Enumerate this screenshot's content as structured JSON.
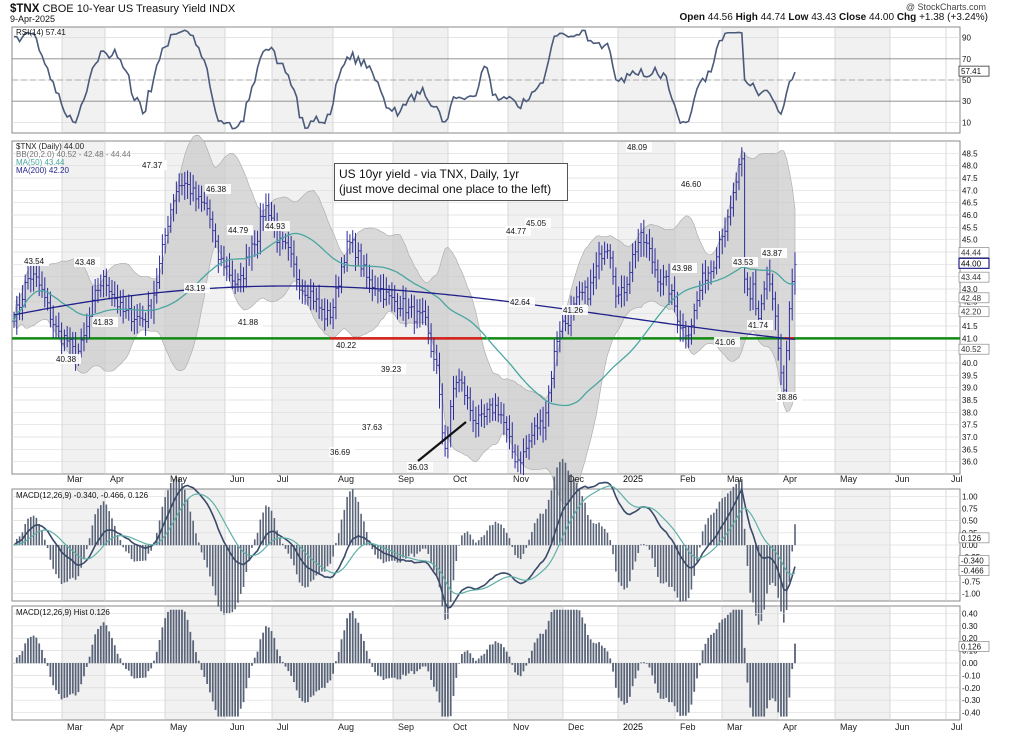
{
  "header": {
    "symbol": "$TNX",
    "name": "CBOE 10-Year US Treasury Yield",
    "exchange": "INDX",
    "date": "9-Apr-2025",
    "brand": "@ StockCharts.com",
    "quote": {
      "open_label": "Open",
      "open": "44.56",
      "high_label": "High",
      "high": "44.74",
      "low_label": "Low",
      "low": "43.43",
      "close_label": "Close",
      "close": "44.00",
      "chg_label": "Chg",
      "chg": "+1.38 (+3.24%)"
    }
  },
  "annotation": {
    "line1": "US 10yr yield - via TNX, Daily, 1yr",
    "line2": "(just move decimal one place to the left)"
  },
  "colors": {
    "price": "#2b2b9c",
    "ma50": "#4aa6a0",
    "ma200": "#1f1f8a",
    "bb": "#c9c9c9",
    "support": "#108a10",
    "breakdown": "#e02020",
    "macd": "#3a4a6a",
    "signal": "#5fb0a8",
    "hist": "#5a6478",
    "rsi": "#4a5a7a"
  },
  "rsi_panel": {
    "legend": "RSI(14) 57.41",
    "ylim": [
      0,
      100
    ],
    "ticks": [
      "90",
      "70",
      "50",
      "30",
      "10"
    ],
    "last_value": "57.41",
    "levels": [
      70,
      30
    ]
  },
  "price_panel": {
    "legend": {
      "price": "$TNX (Daily) 44.00",
      "bb": "BB(20,2.0) 40.52 - 42.48 - 44.44",
      "ma50": "MA(50) 43.44",
      "ma200": "MA(200) 42.20"
    },
    "ylim": [
      35.5,
      49.0
    ],
    "ticks": [
      "48.5",
      "48.0",
      "47.5",
      "47.0",
      "46.5",
      "46.0",
      "45.5",
      "45.0",
      "44.5",
      "44.0",
      "43.5",
      "43.0",
      "42.5",
      "42.0",
      "41.5",
      "41.0",
      "40.5",
      "40.0",
      "39.5",
      "39.0",
      "38.5",
      "38.0",
      "37.5",
      "37.0",
      "36.5",
      "36.0"
    ],
    "axis_labels": [
      "44.44",
      "44.00",
      "43.44",
      "42.48",
      "42.20",
      "40.52"
    ],
    "support_level": 41.0,
    "data_labels": [
      "43.54",
      "40.38",
      "43.48",
      "41.83",
      "47.37",
      "43.19",
      "46.38",
      "44.79",
      "41.88",
      "44.93",
      "40.22",
      "36.69",
      "39.23",
      "37.63",
      "36.03",
      "44.77",
      "42.64",
      "45.05",
      "41.26",
      "48.09",
      "43.98",
      "46.60",
      "43.53",
      "41.06",
      "43.87",
      "41.74",
      "38.86"
    ]
  },
  "macd_panel": {
    "legend": "MACD(12,26,9) -0.340, -0.466, 0.126",
    "ylim": [
      -1.15,
      1.15
    ],
    "ticks": [
      "1.00",
      "0.75",
      "0.50",
      "0.25",
      "0.00",
      "-0.25",
      "-0.50",
      "-0.75",
      "-1.00"
    ],
    "axis_labels": [
      "0.126",
      "-0.340",
      "-0.466"
    ]
  },
  "hist_panel": {
    "legend": "MACD(12,26,9) Hist 0.126",
    "ylim": [
      -0.46,
      0.46
    ],
    "ticks": [
      "0.40",
      "0.30",
      "0.20",
      "0.10",
      "0.00",
      "-0.10",
      "-0.20",
      "-0.30",
      "-0.40"
    ],
    "axis_labels": [
      "0.126"
    ]
  },
  "x_axis": {
    "months": [
      "Mar",
      "Apr",
      "May",
      "Jun",
      "Jul",
      "Aug",
      "Sep",
      "Oct",
      "Nov",
      "Dec",
      "2025",
      "Feb",
      "Mar",
      "Apr",
      "May",
      "Jun",
      "Jul"
    ]
  },
  "chart_data": {
    "type": "line",
    "title": "$TNX CBOE 10-Year US Treasury Yield INDX",
    "x": [
      "Mar",
      "Apr",
      "May",
      "Jun",
      "Jul",
      "Aug",
      "Sep",
      "Oct",
      "Nov",
      "Dec",
      "2025",
      "Feb",
      "Mar",
      "Apr"
    ],
    "series": [
      {
        "name": "$TNX (Daily)",
        "values": [
          42.4,
          42.5,
          46.4,
          44.6,
          43.4,
          41.9,
          37.1,
          39.9,
          43.5,
          42.2,
          46.0,
          44.5,
          42.3,
          44.0
        ]
      },
      {
        "name": "MA(50)",
        "values": [
          42.3,
          41.9,
          44.1,
          44.9,
          44.2,
          42.3,
          39.6,
          38.5,
          41.4,
          42.6,
          43.9,
          45.6,
          43.8,
          43.44
        ]
      },
      {
        "name": "MA(200)",
        "values": [
          41.3,
          42.1,
          43.0,
          43.4,
          43.5,
          43.2,
          42.4,
          41.6,
          41.4,
          41.9,
          42.5,
          42.7,
          42.6,
          42.2
        ]
      }
    ],
    "ylim": [
      35.5,
      49.0
    ],
    "annotations": [
      "43.54",
      "40.38",
      "43.48",
      "41.83",
      "47.37",
      "43.19",
      "46.38",
      "44.79",
      "41.88",
      "44.93",
      "40.22",
      "36.69",
      "39.23",
      "37.63",
      "36.03",
      "44.77",
      "42.64",
      "45.05",
      "41.26",
      "48.09",
      "43.98",
      "46.60",
      "43.53",
      "41.06",
      "43.87",
      "41.74",
      "38.86"
    ]
  }
}
